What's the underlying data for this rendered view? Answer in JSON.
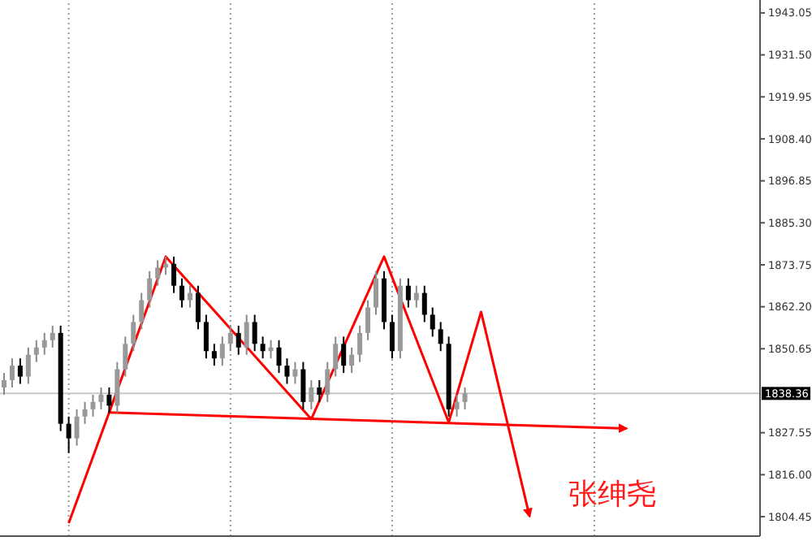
{
  "chart_data": {
    "type": "candlestick",
    "categories": [
      null,
      null,
      null,
      null,
      null,
      null,
      null,
      null,
      null,
      null,
      null,
      null,
      null,
      null,
      null,
      null,
      null,
      null,
      null,
      null,
      null,
      null,
      null,
      null,
      null,
      null,
      null,
      null,
      null,
      null,
      null,
      null,
      null,
      null,
      null,
      null,
      null,
      null,
      null,
      null,
      null,
      null,
      null,
      null,
      null,
      null,
      null,
      null,
      null,
      null,
      null,
      null,
      null,
      null,
      null,
      null,
      null,
      null,
      null,
      null,
      null,
      null,
      null,
      null,
      null,
      null,
      null,
      null,
      null,
      null,
      null,
      null,
      null,
      null,
      null,
      null,
      null,
      null,
      null,
      null,
      null,
      null,
      null,
      null,
      null,
      null,
      null,
      null,
      null,
      null,
      null,
      null,
      null,
      null
    ],
    "ohlc": [
      [
        1840,
        1844,
        1838,
        1842
      ],
      [
        1842,
        1848,
        1840,
        1846
      ],
      [
        1846,
        1848,
        1841,
        1843
      ],
      [
        1843,
        1851,
        1841,
        1849
      ],
      [
        1849,
        1853,
        1847,
        1851
      ],
      [
        1851,
        1855,
        1849,
        1853
      ],
      [
        1853,
        1857,
        1851,
        1855
      ],
      [
        1855,
        1857,
        1828,
        1830
      ],
      [
        1830,
        1832,
        1822,
        1826
      ],
      [
        1826,
        1834,
        1824,
        1832
      ],
      [
        1832,
        1836,
        1830,
        1834
      ],
      [
        1834,
        1838,
        1832,
        1836
      ],
      [
        1836,
        1840,
        1834,
        1838
      ],
      [
        1838,
        1840,
        1833,
        1835
      ],
      [
        1835,
        1847,
        1833,
        1845
      ],
      [
        1845,
        1854,
        1843,
        1852
      ],
      [
        1852,
        1860,
        1850,
        1858
      ],
      [
        1858,
        1866,
        1856,
        1864
      ],
      [
        1864,
        1872,
        1862,
        1870
      ],
      [
        1870,
        1875,
        1868,
        1873
      ],
      [
        1873,
        1876,
        1871,
        1874
      ],
      [
        1874,
        1876,
        1866,
        1868
      ],
      [
        1868,
        1870,
        1862,
        1864
      ],
      [
        1864,
        1868,
        1862,
        1866
      ],
      [
        1866,
        1868,
        1856,
        1858
      ],
      [
        1858,
        1860,
        1848,
        1850
      ],
      [
        1850,
        1852,
        1846,
        1848
      ],
      [
        1848,
        1854,
        1846,
        1852
      ],
      [
        1852,
        1857,
        1850,
        1855
      ],
      [
        1855,
        1857,
        1849,
        1851
      ],
      [
        1851,
        1860,
        1849,
        1858
      ],
      [
        1858,
        1860,
        1850,
        1852
      ],
      [
        1852,
        1854,
        1848,
        1850
      ],
      [
        1850,
        1853,
        1848,
        1851
      ],
      [
        1851,
        1853,
        1844,
        1846
      ],
      [
        1846,
        1848,
        1841,
        1843
      ],
      [
        1843,
        1847,
        1841,
        1845
      ],
      [
        1845,
        1847,
        1834,
        1836
      ],
      [
        1836,
        1842,
        1834,
        1840
      ],
      [
        1840,
        1842,
        1836,
        1838
      ],
      [
        1838,
        1847,
        1836,
        1845
      ],
      [
        1845,
        1854,
        1843,
        1852
      ],
      [
        1852,
        1854,
        1844,
        1846
      ],
      [
        1846,
        1851,
        1844,
        1849
      ],
      [
        1849,
        1857,
        1847,
        1855
      ],
      [
        1855,
        1864,
        1853,
        1862
      ],
      [
        1862,
        1872,
        1860,
        1870
      ],
      [
        1870,
        1872,
        1856,
        1858
      ],
      [
        1858,
        1860,
        1848,
        1850
      ],
      [
        1850,
        1870,
        1848,
        1868
      ],
      [
        1868,
        1870,
        1862,
        1864
      ],
      [
        1864,
        1868,
        1862,
        1866
      ],
      [
        1866,
        1868,
        1858,
        1860
      ],
      [
        1860,
        1862,
        1854,
        1856
      ],
      [
        1856,
        1858,
        1850,
        1852
      ],
      [
        1852,
        1854,
        1832,
        1834
      ],
      [
        1834,
        1838,
        1832,
        1836
      ],
      [
        1836,
        1840,
        1834,
        1838.36
      ],
      null,
      null,
      null,
      null,
      null,
      null,
      null,
      null,
      null,
      null,
      null,
      null,
      null,
      null,
      null,
      null,
      null,
      null,
      null,
      null,
      null,
      null,
      null,
      null,
      null,
      null,
      null,
      null,
      null,
      null,
      null,
      null,
      null,
      null,
      null,
      null
    ],
    "series": [
      {
        "type": "line",
        "color": "#ff0000",
        "values": [
          null,
          null,
          null,
          null,
          null,
          null,
          null,
          null,
          1802.7,
          null,
          null,
          null,
          null,
          1833.1,
          null,
          null,
          null,
          null,
          null,
          null,
          1876.0,
          null,
          null,
          null,
          null,
          null,
          null,
          null,
          null,
          null,
          null,
          null,
          null,
          null,
          null,
          null,
          null,
          null,
          1831.3,
          null,
          null,
          null,
          null,
          null,
          null,
          null,
          null,
          1876.0,
          null,
          null,
          null,
          null,
          null,
          null,
          null,
          1830.4,
          null,
          null,
          null,
          1860.8,
          null,
          null,
          null,
          null,
          null,
          1804.5,
          null,
          null,
          null,
          null,
          null,
          null,
          null,
          null,
          null,
          null,
          null,
          null,
          null,
          null,
          null,
          null,
          null,
          null,
          null,
          null,
          null,
          null,
          null,
          null,
          null,
          null,
          null,
          null
        ]
      },
      {
        "type": "line",
        "color": "#ff0000",
        "values": [
          null,
          null,
          null,
          null,
          null,
          null,
          null,
          null,
          null,
          null,
          null,
          null,
          null,
          1833.1,
          null,
          null,
          null,
          null,
          null,
          null,
          null,
          null,
          null,
          null,
          null,
          null,
          null,
          null,
          null,
          null,
          null,
          null,
          null,
          null,
          null,
          null,
          null,
          null,
          null,
          null,
          null,
          null,
          null,
          null,
          null,
          null,
          null,
          null,
          null,
          null,
          null,
          null,
          null,
          null,
          null,
          null,
          null,
          null,
          null,
          null,
          null,
          null,
          null,
          null,
          null,
          null,
          null,
          null,
          null,
          null,
          null,
          null,
          null,
          null,
          null,
          null,
          null,
          1828.7,
          null,
          null,
          null,
          null,
          null,
          null,
          null,
          null,
          null,
          null,
          null,
          null,
          null,
          null,
          null,
          null
        ]
      }
    ],
    "marker": "none",
    "line_style": "solid",
    "ylim": [
      1799.1,
      1946.6
    ],
    "yticks": [
      {
        "value": 1804.45,
        "label": "1804.45"
      },
      {
        "value": 1816,
        "label": "1816.00"
      },
      {
        "value": 1827.55,
        "label": "1827.55"
      },
      {
        "value": 1850.65,
        "label": "1850.65"
      },
      {
        "value": 1862.2,
        "label": "1862.20"
      },
      {
        "value": 1873.75,
        "label": "1873.75"
      },
      {
        "value": 1885.3,
        "label": "1885.30"
      },
      {
        "value": 1896.85,
        "label": "1896.85"
      },
      {
        "value": 1908.4,
        "label": "1908.40"
      },
      {
        "value": 1919.95,
        "label": "1919.95"
      },
      {
        "value": 1931.5,
        "label": "1931.50"
      },
      {
        "value": 1943.05,
        "label": "1943.05"
      }
    ],
    "ref_lines": [
      {
        "axis": "y",
        "value": 1838.36,
        "label": "1838.36",
        "color": "#c8c8c8"
      }
    ],
    "tick_labels": "y",
    "grid": "x",
    "annotations": [
      "张绅尧"
    ]
  }
}
